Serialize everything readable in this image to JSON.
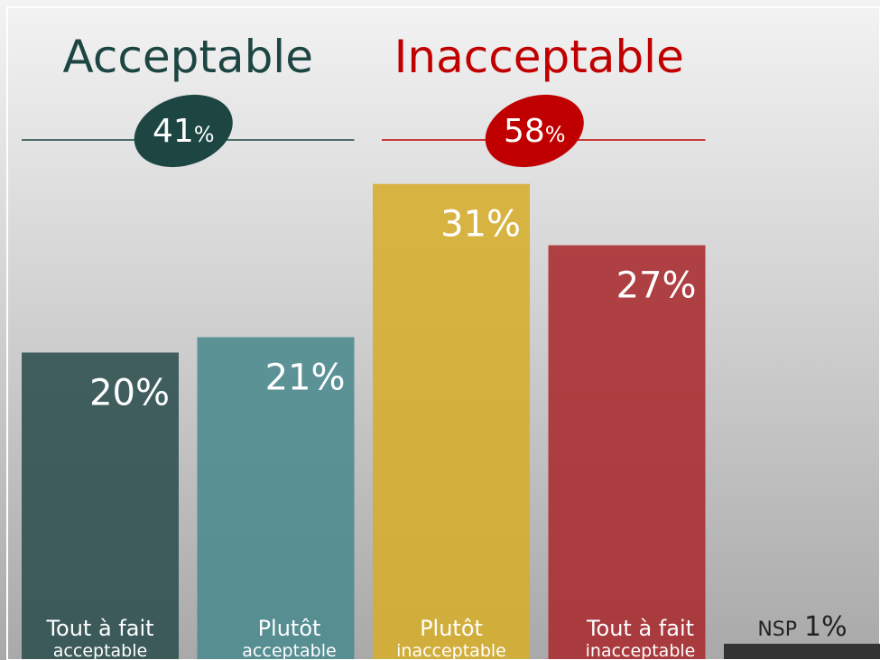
{
  "chart_data": {
    "type": "bar",
    "categories": [
      [
        "Tout à fait",
        "acceptable"
      ],
      [
        "Plutôt",
        "acceptable"
      ],
      [
        "Plutôt",
        "inacceptable"
      ],
      [
        "Tout à fait",
        "inacceptable"
      ],
      [
        "NSP"
      ]
    ],
    "values": [
      20,
      21,
      31,
      27,
      1
    ],
    "value_labels": [
      "20%",
      "21%",
      "31%",
      "27%",
      "1%"
    ],
    "colors": [
      "#2e4f4f",
      "#4a8a8e",
      "#d6ae2c",
      "#a82a2e",
      "#333333"
    ],
    "ylim": [
      0,
      43
    ],
    "groups": [
      {
        "name": "Acceptable",
        "value": 41,
        "unit": "%",
        "color": "#1d4643"
      },
      {
        "name": "Inacceptable",
        "value": 58,
        "unit": "%",
        "color": "#c00000"
      }
    ]
  }
}
